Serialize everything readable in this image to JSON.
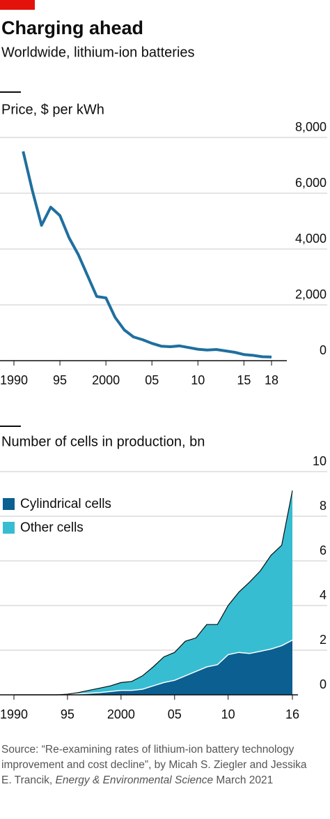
{
  "title": "Charging ahead",
  "subtitle": "Worldwide, lithium-ion batteries",
  "source": [
    "Source: “Re-examining rates of lithium-ion battery technology improvement and cost decline”, by Micah S. Ziegler and Jessika E. Trancik, ",
    "Energy & Environmental Science",
    " March 2021"
  ],
  "chart_data": [
    {
      "type": "line",
      "title": "Price, $ per kWh",
      "x": [
        1991,
        1992,
        1993,
        1994,
        1995,
        1996,
        1997,
        1998,
        1999,
        2000,
        2001,
        2002,
        2003,
        2004,
        2005,
        2006,
        2007,
        2008,
        2009,
        2010,
        2011,
        2012,
        2013,
        2014,
        2015,
        2016,
        2017,
        2018
      ],
      "values": [
        7500,
        6100,
        4850,
        5500,
        5200,
        4400,
        3800,
        3050,
        2300,
        2250,
        1550,
        1100,
        850,
        750,
        620,
        520,
        500,
        530,
        470,
        410,
        380,
        400,
        350,
        300,
        220,
        190,
        140,
        130
      ],
      "color": "#1f6f9f",
      "xlim": [
        1990,
        2018
      ],
      "xticks": [
        1990,
        {
          "value": 1995,
          "label": "95"
        },
        2000,
        {
          "value": 2005,
          "label": "05"
        },
        {
          "value": 2010,
          "label": "10"
        },
        {
          "value": 2015,
          "label": "15"
        },
        {
          "value": 2018,
          "label": "18"
        }
      ],
      "ylim": [
        0,
        8000
      ],
      "yticks": [
        0,
        {
          "value": 2000,
          "label": "2,000"
        },
        {
          "value": 4000,
          "label": "4,000"
        },
        {
          "value": 6000,
          "label": "6,000"
        },
        {
          "value": 8000,
          "label": "8,000"
        }
      ],
      "grid": true
    },
    {
      "type": "area",
      "stacked": true,
      "title": "Number of cells in production, bn",
      "x": [
        1990,
        1991,
        1992,
        1993,
        1994,
        1995,
        1996,
        1997,
        1998,
        1999,
        2000,
        2001,
        2002,
        2003,
        2004,
        2005,
        2006,
        2007,
        2008,
        2009,
        2010,
        2011,
        2012,
        2013,
        2014,
        2015,
        2016
      ],
      "series": [
        {
          "name": "Cylindrical cells",
          "color": "#0b5f91",
          "values": [
            0,
            0,
            0,
            0,
            0,
            0.02,
            0.04,
            0.07,
            0.1,
            0.15,
            0.2,
            0.2,
            0.25,
            0.4,
            0.55,
            0.65,
            0.85,
            1.05,
            1.25,
            1.35,
            1.8,
            1.9,
            1.85,
            1.95,
            2.05,
            2.2,
            2.45
          ]
        },
        {
          "name": "Other cells",
          "color": "#37bdd1",
          "values": [
            0,
            0,
            0,
            0,
            0,
            0.01,
            0.06,
            0.13,
            0.2,
            0.25,
            0.35,
            0.4,
            0.6,
            0.85,
            1.15,
            1.25,
            1.55,
            1.5,
            1.9,
            1.8,
            2.2,
            2.7,
            3.2,
            3.6,
            4.2,
            4.5,
            6.7
          ]
        }
      ],
      "legend": "upper left",
      "xlim": [
        1990,
        2016
      ],
      "xticks": [
        1990,
        {
          "value": 1995,
          "label": "95"
        },
        2000,
        {
          "value": 2005,
          "label": "05"
        },
        {
          "value": 2010,
          "label": "10"
        },
        {
          "value": 2016,
          "label": "16"
        }
      ],
      "ylim": [
        0,
        10
      ],
      "yticks": [
        0,
        2,
        4,
        6,
        8,
        10
      ],
      "grid": true
    }
  ]
}
